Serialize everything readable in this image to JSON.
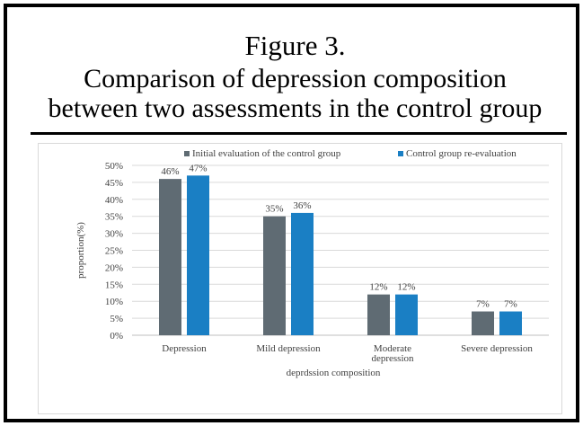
{
  "figure": {
    "label": "Figure 3.",
    "title_line1": "Comparison of depression composition",
    "title_line2": "between two assessments in the control group"
  },
  "chart_data": {
    "type": "bar",
    "categories": [
      "Depression",
      "Mild depression",
      "Moderate depression",
      "Severe depression"
    ],
    "series": [
      {
        "name": "Initial evaluation of the control group",
        "values": [
          46,
          35,
          12,
          7
        ],
        "labels": [
          "46%",
          "35%",
          "12%",
          "7%"
        ],
        "color": "#5f6b73"
      },
      {
        "name": "Control group re-evaluation",
        "values": [
          47,
          36,
          12,
          7
        ],
        "labels": [
          "47%",
          "36%",
          "12%",
          "7%"
        ],
        "color": "#1a7fc4"
      }
    ],
    "xlabel": "deprdssion composition",
    "ylabel": "proportion(%)",
    "ylim": [
      0,
      50
    ],
    "yticks": [
      "0%",
      "5%",
      "10%",
      "15%",
      "20%",
      "25%",
      "30%",
      "35%",
      "40%",
      "45%",
      "50%"
    ],
    "grid": true,
    "legend_position": "top"
  }
}
